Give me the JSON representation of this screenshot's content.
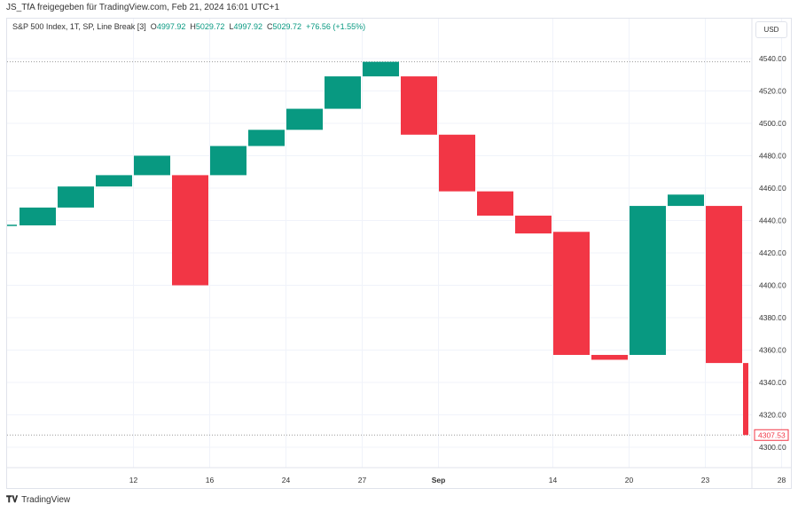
{
  "header": {
    "title": "JS_TfA freigegeben für TradingView.com, Feb 21, 2024 16:01 UTC+1"
  },
  "legend": {
    "symbol": "S&P 500 Index, 1T, SP, Line Break [3]",
    "o_label": "O",
    "o": "4997.92",
    "h_label": "H",
    "h": "5029.72",
    "l_label": "L",
    "l": "4997.92",
    "c_label": "C",
    "c": "5029.72",
    "change": "+76.56 (+1.55%)"
  },
  "currency_button": "USD",
  "footer": {
    "brand": "TradingView"
  },
  "colors": {
    "up": "#089981",
    "down": "#f23645"
  },
  "chart_data": {
    "type": "line-break",
    "title": "S&P 500 Index, 1T, SP, Line Break [3]",
    "ylim": [
      4300,
      4540
    ],
    "y_ticks": [
      "4540.00",
      "4520.00",
      "4500.00",
      "4480.00",
      "4460.00",
      "4440.00",
      "4420.00",
      "4400.00",
      "4380.00",
      "4360.00",
      "4340.00",
      "4320.00",
      "4300.00"
    ],
    "x_ticks": [
      {
        "label": "12",
        "index": 2
      },
      {
        "label": "16",
        "index": 4
      },
      {
        "label": "24",
        "index": 6
      },
      {
        "label": "27",
        "index": 8
      },
      {
        "label": "Sep",
        "index": 10
      },
      {
        "label": "14",
        "index": 13
      },
      {
        "label": "20",
        "index": 15
      },
      {
        "label": "23",
        "index": 17
      },
      {
        "label": "28",
        "index": 19
      }
    ],
    "bricks": [
      {
        "open": 4437,
        "close": 4448
      },
      {
        "open": 4448,
        "close": 4461
      },
      {
        "open": 4461,
        "close": 4468
      },
      {
        "open": 4468,
        "close": 4480
      },
      {
        "open": 4468,
        "close": 4400
      },
      {
        "open": 4468,
        "close": 4486
      },
      {
        "open": 4486,
        "close": 4496
      },
      {
        "open": 4496,
        "close": 4509
      },
      {
        "open": 4509,
        "close": 4529
      },
      {
        "open": 4529,
        "close": 4538
      },
      {
        "open": 4529,
        "close": 4493
      },
      {
        "open": 4493,
        "close": 4458
      },
      {
        "open": 4458,
        "close": 4443
      },
      {
        "open": 4443,
        "close": 4432
      },
      {
        "open": 4433,
        "close": 4357
      },
      {
        "open": 4357,
        "close": 4354
      },
      {
        "open": 4357,
        "close": 4449
      },
      {
        "open": 4449,
        "close": 4456
      },
      {
        "open": 4449,
        "close": 4352
      },
      {
        "open": 4352,
        "close": 4307.53
      }
    ],
    "last_price": "4307.53",
    "high_line": 4538
  }
}
